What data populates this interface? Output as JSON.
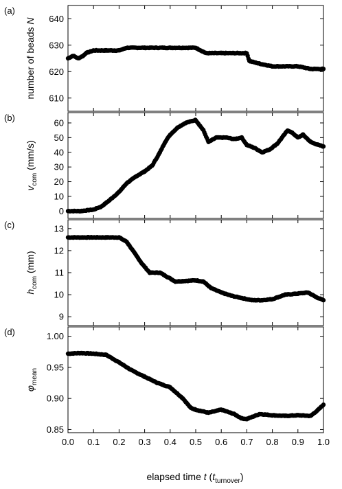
{
  "xaxis": {
    "label_prefix": "elapsed time ",
    "label_var": "t",
    "label_open": " (",
    "label_unit_var": "t",
    "label_unit_sub": "turnover",
    "label_close": ")",
    "range": [
      0.0,
      1.0
    ],
    "ticks": [
      0.0,
      0.1,
      0.2,
      0.3,
      0.4,
      0.5,
      0.6,
      0.7,
      0.8,
      0.9,
      1.0
    ],
    "tick_labels": [
      "0.0",
      "0.1",
      "0.2",
      "0.3",
      "0.4",
      "0.5",
      "0.6",
      "0.7",
      "0.8",
      "0.9",
      "1.0"
    ]
  },
  "style": {
    "marker_color": "#000000",
    "axis_color": "#000000",
    "background": "#ffffff"
  },
  "chart_data": [
    {
      "type": "scatter",
      "panel": "(a)",
      "ylabel": "number of beads N",
      "ylabel_parts": {
        "main": "number of beads ",
        "var": "N"
      },
      "ylim": [
        605,
        645
      ],
      "yticks": [
        610,
        620,
        630,
        640
      ],
      "ytick_labels": [
        "610",
        "620",
        "630",
        "640"
      ],
      "grid": false,
      "series": [
        {
          "x": [
            0.0,
            0.02,
            0.04,
            0.06,
            0.07,
            0.1,
            0.15,
            0.2,
            0.23,
            0.3,
            0.4,
            0.5,
            0.54,
            0.6,
            0.7,
            0.71,
            0.75,
            0.8,
            0.9,
            0.95,
            1.0
          ],
          "y": [
            625,
            626,
            625,
            626,
            627,
            628,
            628,
            628,
            629,
            629,
            629,
            629,
            627,
            627,
            627,
            624,
            623,
            622,
            622,
            621,
            621
          ]
        }
      ]
    },
    {
      "type": "scatter",
      "panel": "(b)",
      "ylabel": "vcom (mm/s)",
      "ylabel_parts": {
        "var": "v",
        "sub": "com",
        "unit": " (mm/s)"
      },
      "ylim": [
        -5,
        67
      ],
      "yticks": [
        0,
        10,
        20,
        30,
        40,
        50,
        60
      ],
      "ytick_labels": [
        "0",
        "10",
        "20",
        "30",
        "40",
        "50",
        "60"
      ],
      "grid": false,
      "series": [
        {
          "x": [
            0.0,
            0.05,
            0.1,
            0.13,
            0.16,
            0.2,
            0.23,
            0.27,
            0.3,
            0.33,
            0.36,
            0.38,
            0.4,
            0.43,
            0.46,
            0.5,
            0.53,
            0.55,
            0.58,
            0.62,
            0.65,
            0.68,
            0.7,
            0.73,
            0.76,
            0.79,
            0.82,
            0.86,
            0.88,
            0.9,
            0.92,
            0.95,
            0.98,
            1.0
          ],
          "y": [
            0,
            0,
            1,
            3,
            7,
            13,
            19,
            24,
            27,
            31,
            40,
            47,
            52,
            57,
            60,
            62,
            55,
            47,
            50,
            50,
            49,
            50,
            45,
            43,
            40,
            42,
            46,
            55,
            53,
            50,
            52,
            47,
            45,
            44
          ]
        }
      ]
    },
    {
      "type": "scatter",
      "panel": "(c)",
      "ylabel": "hcom (mm)",
      "ylabel_parts": {
        "var": "h",
        "sub": "com",
        "unit": " (mm)"
      },
      "ylim": [
        8.6,
        13.4
      ],
      "yticks": [
        9,
        10,
        11,
        12,
        13
      ],
      "ytick_labels": [
        "9",
        "10",
        "11",
        "12",
        "13"
      ],
      "grid": false,
      "series": [
        {
          "x": [
            0.0,
            0.1,
            0.2,
            0.23,
            0.26,
            0.29,
            0.32,
            0.36,
            0.39,
            0.42,
            0.5,
            0.53,
            0.56,
            0.6,
            0.64,
            0.68,
            0.72,
            0.76,
            0.8,
            0.85,
            0.9,
            0.94,
            0.97,
            1.0
          ],
          "y": [
            12.6,
            12.6,
            12.6,
            12.4,
            11.9,
            11.4,
            11.0,
            11.0,
            10.8,
            10.6,
            10.65,
            10.6,
            10.3,
            10.1,
            9.95,
            9.85,
            9.75,
            9.75,
            9.8,
            10.0,
            10.05,
            10.1,
            9.9,
            9.75
          ]
        }
      ]
    },
    {
      "type": "scatter",
      "panel": "(d)",
      "ylabel": "φmean",
      "ylabel_parts": {
        "var": "φ",
        "sub": "mean",
        "unit": ""
      },
      "ylim": [
        0.845,
        1.015
      ],
      "yticks": [
        0.85,
        0.9,
        0.95,
        1.0
      ],
      "ytick_labels": [
        "0.85",
        "0.90",
        "0.95",
        "1.00"
      ],
      "grid": false,
      "series": [
        {
          "x": [
            0.0,
            0.05,
            0.1,
            0.15,
            0.2,
            0.25,
            0.3,
            0.35,
            0.4,
            0.45,
            0.48,
            0.5,
            0.55,
            0.6,
            0.65,
            0.68,
            0.7,
            0.75,
            0.8,
            0.85,
            0.9,
            0.95,
            0.98,
            1.0
          ],
          "y": [
            0.972,
            0.973,
            0.972,
            0.97,
            0.958,
            0.945,
            0.935,
            0.925,
            0.918,
            0.9,
            0.885,
            0.882,
            0.877,
            0.882,
            0.875,
            0.868,
            0.867,
            0.875,
            0.873,
            0.872,
            0.873,
            0.872,
            0.882,
            0.89
          ]
        }
      ]
    }
  ]
}
